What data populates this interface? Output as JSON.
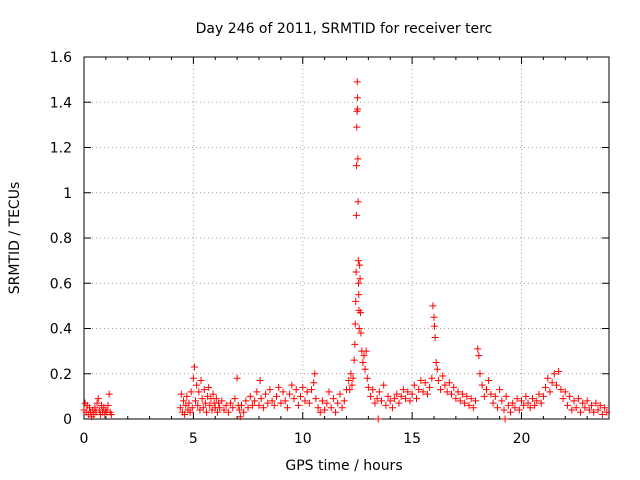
{
  "chart_data": {
    "type": "scatter",
    "title": "Day 246 of 2011, SRMTID for receiver terc",
    "xlabel": "GPS time / hours",
    "ylabel": "SRMTID / TECUs",
    "xlim": [
      0,
      24
    ],
    "ylim": [
      0,
      1.6
    ],
    "xticks": [
      "0",
      "5",
      "10",
      "15",
      "20"
    ],
    "yticks": [
      "0",
      "0.2",
      "0.4",
      "0.6",
      "0.8",
      "1",
      "1.2",
      "1.4",
      "1.6"
    ],
    "grid": true,
    "marker": "+",
    "marker_color": "#ff0000",
    "series": [
      {
        "name": "SRMTID",
        "points": [
          [
            0.0,
            0.04
          ],
          [
            0.05,
            0.07
          ],
          [
            0.1,
            0.03
          ],
          [
            0.15,
            0.06
          ],
          [
            0.2,
            0.02
          ],
          [
            0.25,
            0.05
          ],
          [
            0.3,
            0.03
          ],
          [
            0.35,
            0.01
          ],
          [
            0.4,
            0.04
          ],
          [
            0.45,
            0.02
          ],
          [
            0.5,
            0.05
          ],
          [
            0.55,
            0.03
          ],
          [
            0.6,
            0.07
          ],
          [
            0.65,
            0.09
          ],
          [
            0.7,
            0.04
          ],
          [
            0.75,
            0.02
          ],
          [
            0.8,
            0.06
          ],
          [
            0.85,
            0.03
          ],
          [
            0.9,
            0.05
          ],
          [
            0.95,
            0.02
          ],
          [
            1.0,
            0.04
          ],
          [
            1.05,
            0.03
          ],
          [
            1.1,
            0.06
          ],
          [
            1.15,
            0.11
          ],
          [
            1.2,
            0.03
          ],
          [
            1.25,
            0.02
          ],
          [
            4.4,
            0.05
          ],
          [
            4.45,
            0.11
          ],
          [
            4.5,
            0.03
          ],
          [
            4.55,
            0.08
          ],
          [
            4.6,
            0.02
          ],
          [
            4.65,
            0.06
          ],
          [
            4.7,
            0.1
          ],
          [
            4.75,
            0.04
          ],
          [
            4.8,
            0.07
          ],
          [
            4.85,
            0.03
          ],
          [
            4.9,
            0.12
          ],
          [
            4.95,
            0.05
          ],
          [
            5.0,
            0.18
          ],
          [
            5.05,
            0.23
          ],
          [
            5.1,
            0.08
          ],
          [
            5.15,
            0.15
          ],
          [
            5.2,
            0.06
          ],
          [
            5.25,
            0.12
          ],
          [
            5.3,
            0.04
          ],
          [
            5.35,
            0.17
          ],
          [
            5.4,
            0.09
          ],
          [
            5.45,
            0.05
          ],
          [
            5.5,
            0.13
          ],
          [
            5.55,
            0.07
          ],
          [
            5.6,
            0.03
          ],
          [
            5.65,
            0.1
          ],
          [
            5.7,
            0.14
          ],
          [
            5.75,
            0.06
          ],
          [
            5.8,
            0.09
          ],
          [
            5.85,
            0.04
          ],
          [
            5.9,
            0.11
          ],
          [
            5.95,
            0.07
          ],
          [
            6.0,
            0.05
          ],
          [
            6.05,
            0.09
          ],
          [
            6.1,
            0.03
          ],
          [
            6.15,
            0.07
          ],
          [
            6.2,
            0.05
          ],
          [
            6.3,
            0.08
          ],
          [
            6.4,
            0.04
          ],
          [
            6.5,
            0.06
          ],
          [
            6.6,
            0.03
          ],
          [
            6.7,
            0.07
          ],
          [
            6.8,
            0.05
          ],
          [
            6.9,
            0.09
          ],
          [
            7.0,
            0.18
          ],
          [
            7.05,
            0.06
          ],
          [
            7.1,
            0.04
          ],
          [
            7.15,
            0.01
          ],
          [
            7.2,
            0.06
          ],
          [
            7.3,
            0.03
          ],
          [
            7.4,
            0.08
          ],
          [
            7.5,
            0.05
          ],
          [
            7.6,
            0.1
          ],
          [
            7.7,
            0.06
          ],
          [
            7.8,
            0.08
          ],
          [
            7.9,
            0.12
          ],
          [
            8.0,
            0.06
          ],
          [
            8.05,
            0.17
          ],
          [
            8.1,
            0.09
          ],
          [
            8.2,
            0.05
          ],
          [
            8.3,
            0.11
          ],
          [
            8.4,
            0.07
          ],
          [
            8.5,
            0.13
          ],
          [
            8.6,
            0.08
          ],
          [
            8.7,
            0.06
          ],
          [
            8.8,
            0.1
          ],
          [
            8.9,
            0.14
          ],
          [
            9.0,
            0.07
          ],
          [
            9.1,
            0.12
          ],
          [
            9.2,
            0.08
          ],
          [
            9.3,
            0.05
          ],
          [
            9.4,
            0.11
          ],
          [
            9.5,
            0.15
          ],
          [
            9.6,
            0.09
          ],
          [
            9.7,
            0.13
          ],
          [
            9.8,
            0.06
          ],
          [
            9.9,
            0.1
          ],
          [
            10.0,
            0.14
          ],
          [
            10.1,
            0.08
          ],
          [
            10.2,
            0.12
          ],
          [
            10.3,
            0.07
          ],
          [
            10.4,
            0.13
          ],
          [
            10.5,
            0.16
          ],
          [
            10.55,
            0.2
          ],
          [
            10.6,
            0.09
          ],
          [
            10.7,
            0.05
          ],
          [
            10.8,
            0.03
          ],
          [
            10.9,
            0.08
          ],
          [
            11.0,
            0.04
          ],
          [
            11.1,
            0.07
          ],
          [
            11.2,
            0.12
          ],
          [
            11.3,
            0.05
          ],
          [
            11.4,
            0.09
          ],
          [
            11.5,
            0.03
          ],
          [
            11.6,
            0.07
          ],
          [
            11.7,
            0.11
          ],
          [
            11.8,
            0.05
          ],
          [
            11.9,
            0.08
          ],
          [
            12.0,
            0.13
          ],
          [
            12.1,
            0.17
          ],
          [
            12.15,
            0.13
          ],
          [
            12.2,
            0.2
          ],
          [
            12.25,
            0.15
          ],
          [
            12.3,
            0.18
          ],
          [
            12.35,
            0.26
          ],
          [
            12.38,
            0.33
          ],
          [
            12.4,
            0.42
          ],
          [
            12.42,
            0.52
          ],
          [
            12.44,
            0.65
          ],
          [
            12.45,
            0.9
          ],
          [
            12.46,
            1.12
          ],
          [
            12.47,
            1.29
          ],
          [
            12.48,
            1.36
          ],
          [
            12.49,
            1.49
          ],
          [
            12.5,
            1.42
          ],
          [
            12.51,
            1.37
          ],
          [
            12.52,
            1.15
          ],
          [
            12.53,
            0.96
          ],
          [
            12.54,
            0.7
          ],
          [
            12.55,
            0.6
          ],
          [
            12.56,
            0.55
          ],
          [
            12.57,
            0.48
          ],
          [
            12.58,
            0.4
          ],
          [
            12.6,
            0.68
          ],
          [
            12.62,
            0.62
          ],
          [
            12.64,
            0.47
          ],
          [
            12.66,
            0.38
          ],
          [
            12.7,
            0.3
          ],
          [
            12.75,
            0.25
          ],
          [
            12.8,
            0.28
          ],
          [
            12.85,
            0.22
          ],
          [
            12.9,
            0.3
          ],
          [
            12.95,
            0.18
          ],
          [
            13.0,
            0.14
          ],
          [
            13.1,
            0.1
          ],
          [
            13.2,
            0.13
          ],
          [
            13.3,
            0.07
          ],
          [
            13.4,
            0.09
          ],
          [
            13.45,
            0.0
          ],
          [
            13.5,
            0.12
          ],
          [
            13.6,
            0.08
          ],
          [
            13.7,
            0.15
          ],
          [
            13.8,
            0.06
          ],
          [
            13.9,
            0.1
          ],
          [
            14.0,
            0.08
          ],
          [
            14.1,
            0.05
          ],
          [
            14.2,
            0.09
          ],
          [
            14.3,
            0.11
          ],
          [
            14.4,
            0.07
          ],
          [
            14.5,
            0.1
          ],
          [
            14.6,
            0.13
          ],
          [
            14.7,
            0.09
          ],
          [
            14.8,
            0.12
          ],
          [
            14.9,
            0.08
          ],
          [
            15.0,
            0.11
          ],
          [
            15.1,
            0.15
          ],
          [
            15.2,
            0.09
          ],
          [
            15.3,
            0.13
          ],
          [
            15.4,
            0.17
          ],
          [
            15.5,
            0.12
          ],
          [
            15.6,
            0.16
          ],
          [
            15.7,
            0.11
          ],
          [
            15.8,
            0.14
          ],
          [
            15.9,
            0.18
          ],
          [
            15.95,
            0.5
          ],
          [
            16.0,
            0.45
          ],
          [
            16.02,
            0.41
          ],
          [
            16.05,
            0.36
          ],
          [
            16.1,
            0.25
          ],
          [
            16.15,
            0.22
          ],
          [
            16.2,
            0.17
          ],
          [
            16.3,
            0.13
          ],
          [
            16.4,
            0.19
          ],
          [
            16.5,
            0.15
          ],
          [
            16.6,
            0.12
          ],
          [
            16.7,
            0.16
          ],
          [
            16.8,
            0.11
          ],
          [
            16.9,
            0.14
          ],
          [
            17.0,
            0.09
          ],
          [
            17.1,
            0.12
          ],
          [
            17.2,
            0.08
          ],
          [
            17.3,
            0.11
          ],
          [
            17.4,
            0.07
          ],
          [
            17.5,
            0.1
          ],
          [
            17.6,
            0.06
          ],
          [
            17.7,
            0.09
          ],
          [
            17.8,
            0.05
          ],
          [
            17.9,
            0.08
          ],
          [
            18.0,
            0.31
          ],
          [
            18.05,
            0.28
          ],
          [
            18.1,
            0.2
          ],
          [
            18.2,
            0.15
          ],
          [
            18.3,
            0.1
          ],
          [
            18.4,
            0.13
          ],
          [
            18.5,
            0.17
          ],
          [
            18.6,
            0.11
          ],
          [
            18.7,
            0.07
          ],
          [
            18.8,
            0.1
          ],
          [
            18.9,
            0.05
          ],
          [
            19.0,
            0.13
          ],
          [
            19.1,
            0.08
          ],
          [
            19.2,
            0.04
          ],
          [
            19.25,
            0.0
          ],
          [
            19.3,
            0.1
          ],
          [
            19.4,
            0.06
          ],
          [
            19.5,
            0.03
          ],
          [
            19.6,
            0.07
          ],
          [
            19.7,
            0.05
          ],
          [
            19.8,
            0.09
          ],
          [
            19.9,
            0.04
          ],
          [
            20.0,
            0.08
          ],
          [
            20.1,
            0.06
          ],
          [
            20.2,
            0.1
          ],
          [
            20.3,
            0.07
          ],
          [
            20.4,
            0.05
          ],
          [
            20.5,
            0.09
          ],
          [
            20.6,
            0.06
          ],
          [
            20.7,
            0.08
          ],
          [
            20.8,
            0.11
          ],
          [
            20.9,
            0.07
          ],
          [
            21.0,
            0.1
          ],
          [
            21.1,
            0.14
          ],
          [
            21.2,
            0.18
          ],
          [
            21.3,
            0.12
          ],
          [
            21.4,
            0.16
          ],
          [
            21.5,
            0.2
          ],
          [
            21.6,
            0.15
          ],
          [
            21.7,
            0.21
          ],
          [
            21.8,
            0.13
          ],
          [
            21.9,
            0.09
          ],
          [
            22.0,
            0.12
          ],
          [
            22.1,
            0.06
          ],
          [
            22.2,
            0.1
          ],
          [
            22.3,
            0.04
          ],
          [
            22.4,
            0.08
          ],
          [
            22.5,
            0.05
          ],
          [
            22.6,
            0.09
          ],
          [
            22.7,
            0.03
          ],
          [
            22.8,
            0.07
          ],
          [
            22.9,
            0.05
          ],
          [
            23.0,
            0.08
          ],
          [
            23.1,
            0.04
          ],
          [
            23.2,
            0.06
          ],
          [
            23.3,
            0.03
          ],
          [
            23.4,
            0.07
          ],
          [
            23.5,
            0.04
          ],
          [
            23.6,
            0.06
          ],
          [
            23.7,
            0.02
          ],
          [
            23.8,
            0.05
          ],
          [
            23.9,
            0.03
          ]
        ]
      }
    ]
  }
}
